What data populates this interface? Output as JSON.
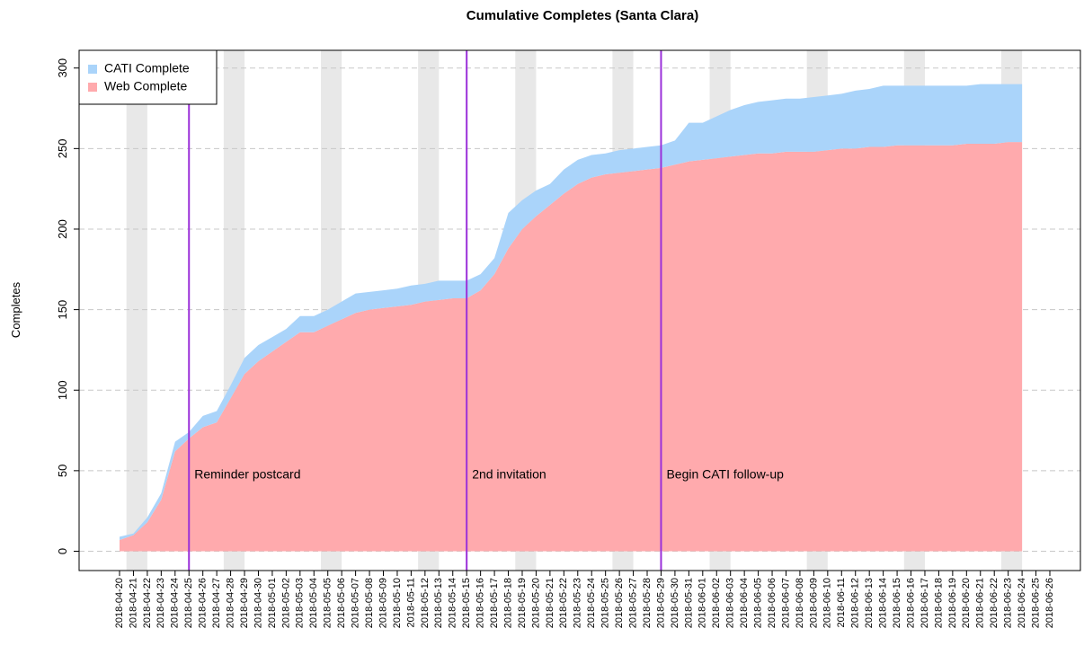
{
  "chart_data": {
    "type": "stacked_area",
    "title": "Cumulative Completes (Santa Clara)",
    "y_label": "Completes",
    "categories": [
      "2018-04-20",
      "2018-04-21",
      "2018-04-22",
      "2018-04-23",
      "2018-04-24",
      "2018-04-25",
      "2018-04-26",
      "2018-04-27",
      "2018-04-28",
      "2018-04-29",
      "2018-04-30",
      "2018-05-01",
      "2018-05-02",
      "2018-05-03",
      "2018-05-04",
      "2018-05-05",
      "2018-05-06",
      "2018-05-07",
      "2018-05-08",
      "2018-05-09",
      "2018-05-10",
      "2018-05-11",
      "2018-05-12",
      "2018-05-13",
      "2018-05-14",
      "2018-05-15",
      "2018-05-16",
      "2018-05-17",
      "2018-05-18",
      "2018-05-19",
      "2018-05-20",
      "2018-05-21",
      "2018-05-22",
      "2018-05-23",
      "2018-05-24",
      "2018-05-25",
      "2018-05-26",
      "2018-05-27",
      "2018-05-28",
      "2018-05-29",
      "2018-05-30",
      "2018-05-31",
      "2018-06-01",
      "2018-06-02",
      "2018-06-03",
      "2018-06-04",
      "2018-06-05",
      "2018-06-06",
      "2018-06-07",
      "2018-06-08",
      "2018-06-09",
      "2018-06-10",
      "2018-06-11",
      "2018-06-12",
      "2018-06-13",
      "2018-06-14",
      "2018-06-15",
      "2018-06-16",
      "2018-06-17",
      "2018-06-18",
      "2018-06-19",
      "2018-06-20",
      "2018-06-21",
      "2018-06-22",
      "2018-06-23",
      "2018-06-24",
      "2018-06-25",
      "2018-06-26"
    ],
    "series": [
      {
        "name": "CATI Complete",
        "color": "#aad4fa",
        "values": [
          2,
          1,
          3,
          4,
          6,
          4,
          7,
          7,
          8,
          10,
          10,
          9,
          8,
          10,
          10,
          10,
          11,
          12,
          11,
          11,
          11,
          12,
          11,
          12,
          11,
          11,
          10,
          10,
          22,
          18,
          16,
          13,
          15,
          15,
          14,
          13,
          14,
          14,
          14,
          14,
          15,
          24,
          23,
          26,
          29,
          31,
          32,
          33,
          33,
          33,
          34,
          34,
          34,
          36,
          36,
          38,
          37,
          37,
          37,
          37,
          37,
          36,
          37,
          37,
          36,
          36,
          null,
          null
        ]
      },
      {
        "name": "Web Complete",
        "color": "#ffaaad",
        "values": [
          7,
          10,
          18,
          32,
          62,
          70,
          77,
          80,
          95,
          110,
          118,
          124,
          130,
          136,
          136,
          140,
          144,
          148,
          150,
          151,
          152,
          153,
          155,
          156,
          157,
          157,
          162,
          172,
          188,
          200,
          208,
          215,
          222,
          228,
          232,
          234,
          235,
          236,
          237,
          238,
          240,
          242,
          243,
          244,
          245,
          246,
          247,
          247,
          248,
          248,
          248,
          249,
          250,
          250,
          251,
          251,
          252,
          252,
          252,
          252,
          252,
          253,
          253,
          253,
          254,
          254,
          null,
          null
        ]
      }
    ],
    "stack_order": [
      1,
      0
    ],
    "annotations": [
      {
        "text": "Reminder postcard",
        "x": "2018-04-25"
      },
      {
        "text": "2nd invitation",
        "x": "2018-05-15"
      },
      {
        "text": "Begin CATI follow-up",
        "x": "2018-05-29"
      }
    ],
    "annotation_color": "#9b30d9",
    "weekend_shading": true,
    "ylim": [
      -12,
      311
    ],
    "yticks": [
      0,
      50,
      100,
      150,
      200,
      250,
      300
    ],
    "grid": true,
    "legend": "top-left"
  }
}
